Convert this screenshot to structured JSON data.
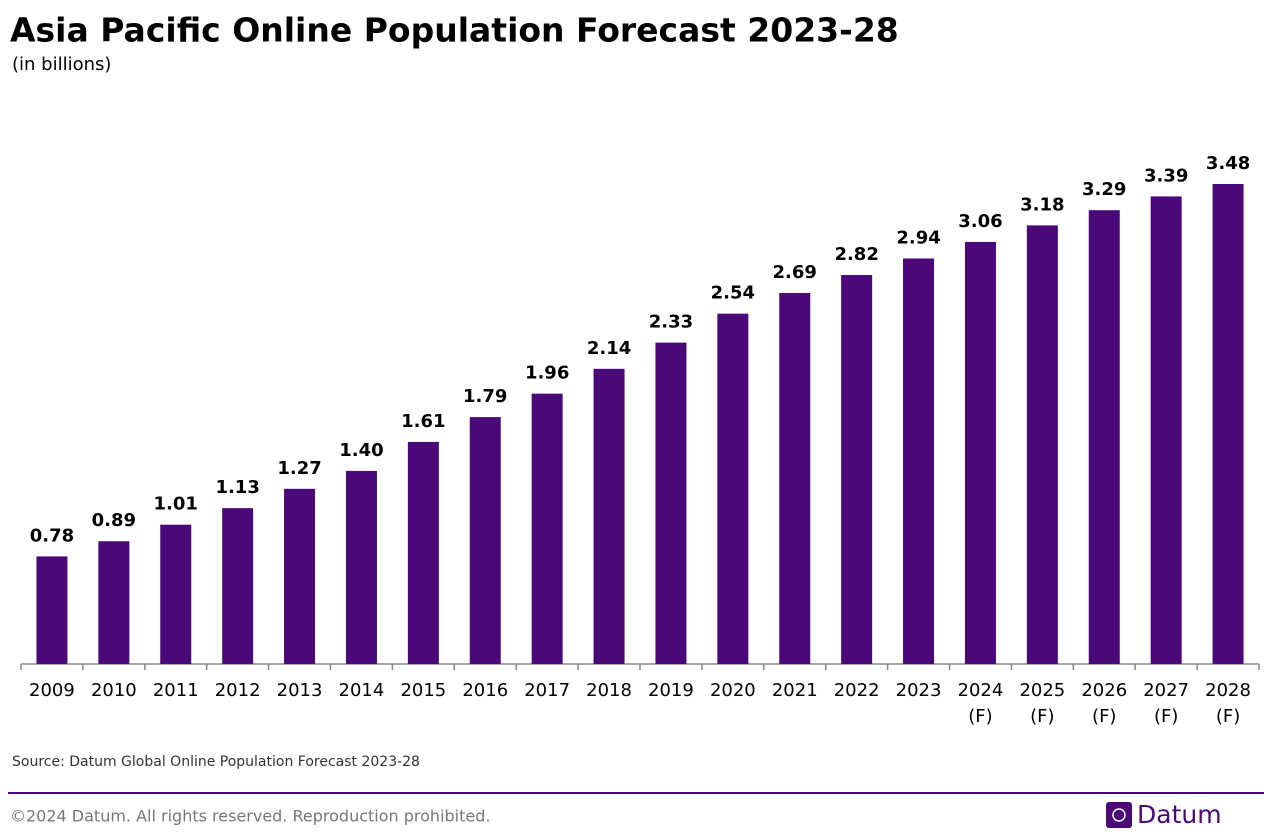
{
  "chart_data": {
    "type": "bar",
    "title": "Asia Pacific Online Population Forecast 2023-28",
    "subtitle": "(in billions)",
    "categories": [
      "2009",
      "2010",
      "2011",
      "2012",
      "2013",
      "2014",
      "2015",
      "2016",
      "2017",
      "2018",
      "2019",
      "2020",
      "2021",
      "2022",
      "2023",
      "2024 (F)",
      "2025 (F)",
      "2026 (F)",
      "2027 (F)",
      "2028 (F)"
    ],
    "values": [
      0.78,
      0.89,
      1.01,
      1.13,
      1.27,
      1.4,
      1.61,
      1.79,
      1.96,
      2.14,
      2.33,
      2.54,
      2.69,
      2.82,
      2.94,
      3.06,
      3.18,
      3.29,
      3.39,
      3.48
    ],
    "value_labels": [
      "0.78",
      "0.89",
      "1.01",
      "1.13",
      "1.27",
      "1.40",
      "1.61",
      "1.79",
      "1.96",
      "2.14",
      "2.33",
      "2.54",
      "2.69",
      "2.82",
      "2.94",
      "3.06",
      "3.18",
      "3.29",
      "3.39",
      "3.48"
    ],
    "color": "#4b0878",
    "source": "Source: Datum Global Online Population Forecast 2023-28",
    "footer": "©2024 Datum. All rights reserved. Reproduction prohibited.",
    "brand": "Datum"
  }
}
